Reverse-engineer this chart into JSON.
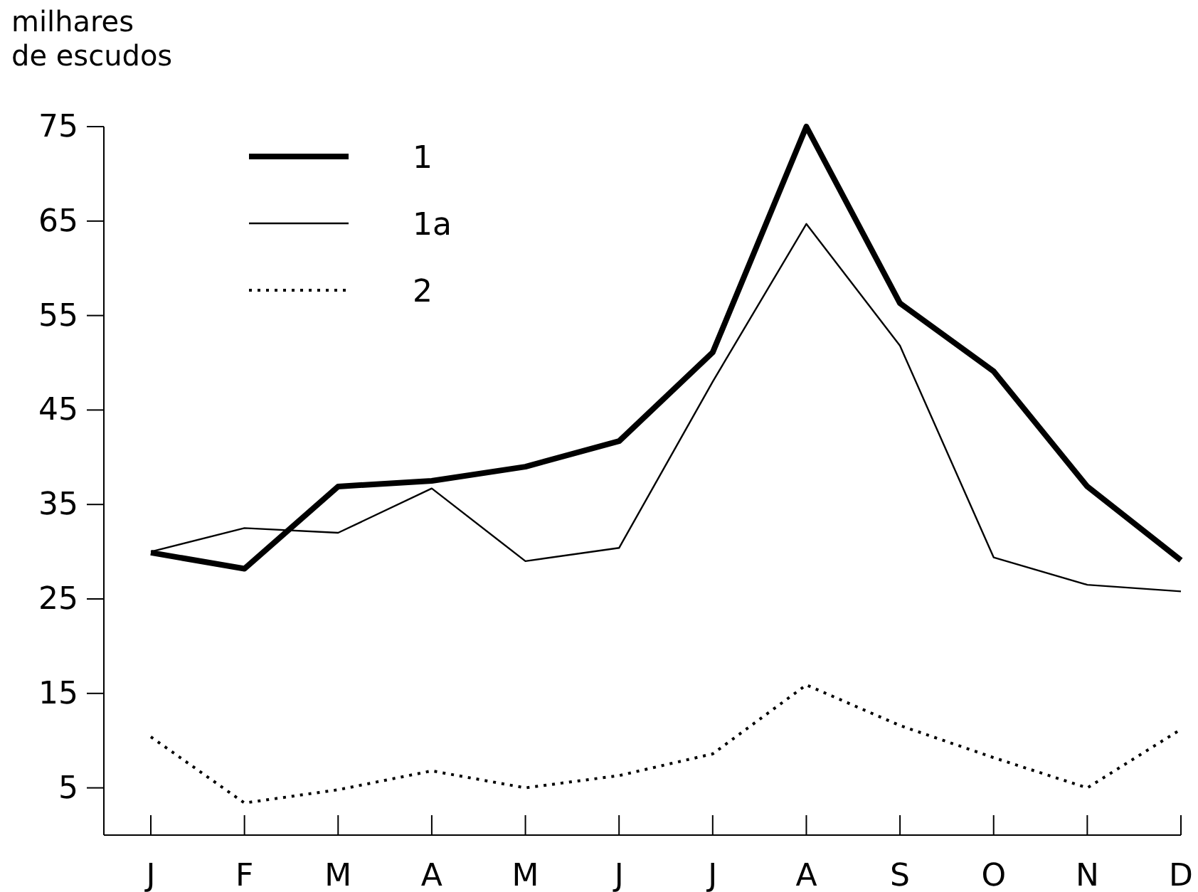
{
  "chart_data": {
    "type": "line",
    "ylabel": "milhares\nde escudos",
    "categories": [
      "J",
      "F",
      "M",
      "A",
      "M",
      "J",
      "J",
      "A",
      "S",
      "O",
      "N",
      "D"
    ],
    "ylim": [
      0,
      75
    ],
    "yticks": [
      5,
      15,
      25,
      35,
      45,
      55,
      65,
      75
    ],
    "legend": "top left",
    "grid": false,
    "series": [
      {
        "name": "1",
        "color": "#000000",
        "line_style": "solid",
        "values": [
          29.9,
          28.2,
          36.9,
          37.5,
          39.0,
          41.7,
          51.1,
          75,
          56.3,
          49.1,
          36.9,
          29.1
        ]
      },
      {
        "name": "1a",
        "color": "#000000",
        "line_style": "solid",
        "values": [
          30.0,
          32.5,
          32.0,
          36.7,
          29.0,
          30.4,
          48,
          64.7,
          51.8,
          29.4,
          26.5,
          25.8
        ]
      },
      {
        "name": "2",
        "color": "#000000",
        "line_style": "dotted",
        "values": [
          10.4,
          3.4,
          4.8,
          6.8,
          5.0,
          6.3,
          8.6,
          15.9,
          11.6,
          8.2,
          5.0,
          11.2
        ]
      }
    ]
  }
}
